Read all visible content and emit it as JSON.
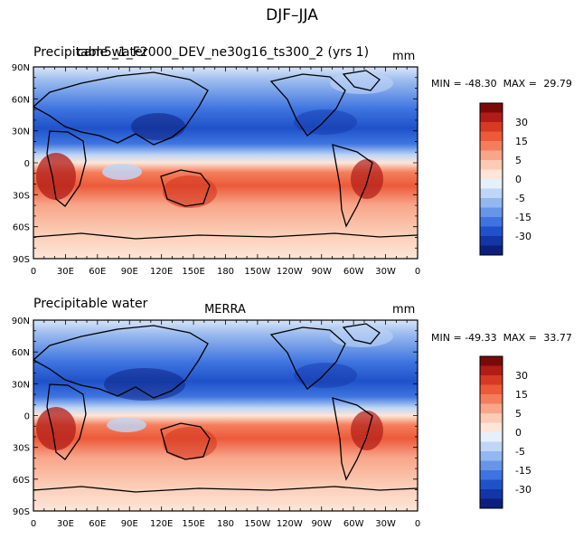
{
  "figure": {
    "title": "DJF–JJA"
  },
  "panels": [
    {
      "variable": "Precipitable water",
      "source": "cam5_1_F2000_DEV_ne30g16_ts300_2 (yrs 1)",
      "units": "mm",
      "stats": {
        "min_label": "MIN = ",
        "min": "-48.30",
        "max_label": "MAX = ",
        "max": "29.79"
      }
    },
    {
      "variable": "Precipitable water",
      "source": "MERRA",
      "units": "mm",
      "stats": {
        "min_label": "MIN = ",
        "min": "-49.33",
        "max_label": "MAX = ",
        "max": "33.77"
      }
    }
  ],
  "colorbar": {
    "labels": [
      "30",
      "15",
      "5",
      "0",
      "-5",
      "-15",
      "-30"
    ],
    "colors": [
      "#7a0a0a",
      "#b11c17",
      "#d63a22",
      "#ec5a3a",
      "#f47e5c",
      "#f8a58a",
      "#fbcbb4",
      "#fde6d8",
      "#e6f0fb",
      "#bfd6f6",
      "#93b8f0",
      "#6796e8",
      "#3e74e0",
      "#1f52c9",
      "#1236a6",
      "#0c1f7d"
    ]
  },
  "chart_data": [
    {
      "type": "heatmap",
      "title": "Precipitable water — cam5_1_F2000_DEV_ne30g16_ts300_2 (yrs 1)",
      "units": "mm",
      "x_ticks": [
        "0",
        "30E",
        "60E",
        "90E",
        "120E",
        "150E",
        "180",
        "150W",
        "120W",
        "90W",
        "60W",
        "30W",
        "0"
      ],
      "y_ticks": [
        "90N",
        "60N",
        "30N",
        "0",
        "30S",
        "60S",
        "90S"
      ],
      "xlim": [
        0,
        360
      ],
      "ylim": [
        -90,
        90
      ],
      "levels": [
        -30,
        -15,
        -5,
        0,
        5,
        15,
        30
      ],
      "min": -48.3,
      "max": 29.79
    },
    {
      "type": "heatmap",
      "title": "Precipitable water — MERRA",
      "units": "mm",
      "x_ticks": [
        "0",
        "30E",
        "60E",
        "90E",
        "120E",
        "150E",
        "180",
        "150W",
        "120W",
        "90W",
        "60W",
        "30W",
        "0"
      ],
      "y_ticks": [
        "90N",
        "60N",
        "30N",
        "0",
        "30S",
        "60S",
        "90S"
      ],
      "xlim": [
        0,
        360
      ],
      "ylim": [
        -90,
        90
      ],
      "levels": [
        -30,
        -15,
        -5,
        0,
        5,
        15,
        30
      ],
      "min": -49.33,
      "max": 33.77
    }
  ]
}
